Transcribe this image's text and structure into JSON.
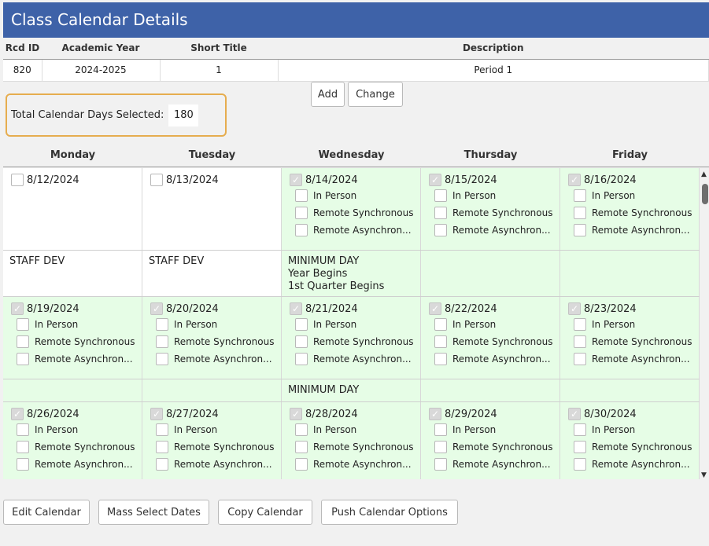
{
  "window": {
    "title": "Class Calendar Details"
  },
  "info_table": {
    "headers": [
      "Rcd ID",
      "Academic Year",
      "Short Title",
      "Description"
    ],
    "row": [
      "820",
      "2024-2025",
      "1",
      "Period 1"
    ]
  },
  "buttons": {
    "add": "Add",
    "change": "Change"
  },
  "total": {
    "label": "Total Calendar Days Selected:",
    "value": "180"
  },
  "calendar": {
    "days": [
      "Monday",
      "Tuesday",
      "Wednesday",
      "Thursday",
      "Friday"
    ],
    "options": [
      "In Person",
      "Remote Synchronous",
      "Remote Asynchron..."
    ],
    "weeks": [
      {
        "dates": [
          {
            "date": "8/12/2024",
            "checked": false,
            "green": false
          },
          {
            "date": "8/13/2024",
            "checked": false,
            "green": false
          },
          {
            "date": "8/14/2024",
            "checked": true,
            "green": true
          },
          {
            "date": "8/15/2024",
            "checked": true,
            "green": true
          },
          {
            "date": "8/16/2024",
            "checked": true,
            "green": true
          }
        ],
        "notes": [
          "STAFF DEV",
          "STAFF DEV",
          "MINIMUM DAY\nYear Begins\n1st Quarter Begins",
          "",
          ""
        ]
      },
      {
        "dates": [
          {
            "date": "8/19/2024",
            "checked": true,
            "green": true
          },
          {
            "date": "8/20/2024",
            "checked": true,
            "green": true
          },
          {
            "date": "8/21/2024",
            "checked": true,
            "green": true
          },
          {
            "date": "8/22/2024",
            "checked": true,
            "green": true
          },
          {
            "date": "8/23/2024",
            "checked": true,
            "green": true
          }
        ],
        "notes": [
          "",
          "",
          "MINIMUM DAY",
          "",
          ""
        ]
      },
      {
        "dates": [
          {
            "date": "8/26/2024",
            "checked": true,
            "green": true
          },
          {
            "date": "8/27/2024",
            "checked": true,
            "green": true
          },
          {
            "date": "8/28/2024",
            "checked": true,
            "green": true
          },
          {
            "date": "8/29/2024",
            "checked": true,
            "green": true
          },
          {
            "date": "8/30/2024",
            "checked": true,
            "green": true
          }
        ],
        "notes": [
          "",
          "",
          "",
          "",
          ""
        ]
      }
    ]
  },
  "footer": {
    "edit_calendar": "Edit Calendar",
    "mass_select": "Mass Select Dates",
    "copy_calendar": "Copy Calendar",
    "push_options": "Push Calendar Options"
  },
  "colors": {
    "title_bar": "#3e62a8",
    "selected_day": "#e6fde6",
    "highlight_border": "#e6ad4f"
  },
  "icons": {
    "scroll_up": "scroll-up-arrow-icon",
    "scroll_down": "scroll-down-arrow-icon",
    "checkbox": "checkbox-icon"
  }
}
